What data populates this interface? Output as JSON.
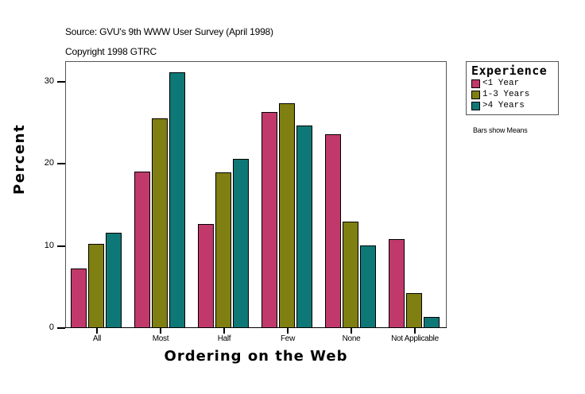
{
  "header": {
    "source": "Source: GVU's 9th WWW User Survey (April 1998)",
    "copyright": "Copyright 1998 GTRC"
  },
  "legend": {
    "title": "Experience",
    "items": [
      {
        "label": "<1 Year",
        "color": "#c0396a"
      },
      {
        "label": "1-3 Years",
        "color": "#7f7f12"
      },
      {
        "label": ">4 Years",
        "color": "#0e7877"
      }
    ]
  },
  "note": "Bars show Means",
  "axes": {
    "ylabel": "Percent",
    "xlabel": "Ordering on the Web",
    "yticks": [
      "0",
      "10",
      "20",
      "30"
    ]
  },
  "chart_data": {
    "type": "bar",
    "title": "",
    "subtitle": "Source: GVU's 9th WWW User Survey (April 1998) / Copyright 1998 GTRC",
    "xlabel": "Ordering on the Web",
    "ylabel": "Percent",
    "ylim": [
      0,
      32.5
    ],
    "yticks": [
      0,
      10,
      20,
      30
    ],
    "grid": false,
    "legend_position": "right",
    "legend_title": "Experience",
    "categories": [
      "All",
      "Most",
      "Half",
      "Few",
      "None",
      "Not Applicable"
    ],
    "series": [
      {
        "name": "<1 Year",
        "color": "#c0396a",
        "values": [
          7.3,
          19.1,
          12.7,
          26.3,
          23.6,
          10.8
        ]
      },
      {
        "name": "1-3 Years",
        "color": "#7f7f12",
        "values": [
          10.3,
          25.6,
          19.0,
          27.4,
          13.0,
          4.3
        ]
      },
      {
        "name": ">4 Years",
        "color": "#0e7877",
        "values": [
          11.6,
          31.2,
          20.6,
          24.7,
          10.1,
          1.4
        ]
      }
    ],
    "annotations": [
      "Bars show Means"
    ]
  }
}
